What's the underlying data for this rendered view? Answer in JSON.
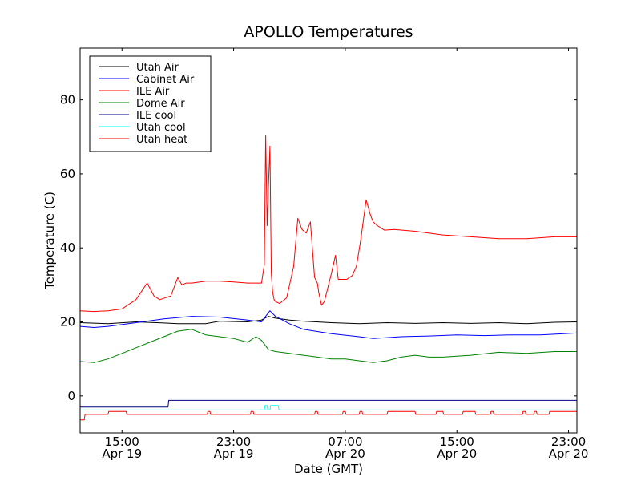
{
  "chart_data": {
    "type": "line",
    "title": "APOLLO Temperatures",
    "xlabel": "Date (GMT)",
    "ylabel": "Temperature (C)",
    "xlim": [
      12.0,
      47.6
    ],
    "ylim": [
      -10,
      94
    ],
    "grid": false,
    "legend_position": "top-left",
    "x_unit": "hours since 00:00 GMT Apr 19",
    "x_ticks": [
      {
        "value": 15,
        "time": "15:00",
        "date": "Apr 19"
      },
      {
        "value": 23,
        "time": "23:00",
        "date": "Apr 19"
      },
      {
        "value": 31,
        "time": "07:00",
        "date": "Apr 20"
      },
      {
        "value": 39,
        "time": "15:00",
        "date": "Apr 20"
      },
      {
        "value": 47,
        "time": "23:00",
        "date": "Apr 20"
      }
    ],
    "y_ticks": [
      {
        "value": 0,
        "label": "0"
      },
      {
        "value": 20,
        "label": "20"
      },
      {
        "value": 40,
        "label": "40"
      },
      {
        "value": 60,
        "label": "60"
      },
      {
        "value": 80,
        "label": "80"
      }
    ],
    "series": [
      {
        "name": "Utah Air",
        "color": "#000000",
        "x": [
          12.0,
          14.0,
          16.0,
          18.0,
          19.0,
          21.0,
          22.0,
          24.0,
          25.0,
          25.5,
          26.0,
          27.0,
          28.0,
          30.0,
          32.0,
          34.0,
          36.0,
          38.0,
          40.0,
          42.0,
          44.0,
          46.0,
          47.6
        ],
        "y": [
          19.8,
          19.5,
          20.0,
          19.7,
          19.5,
          19.5,
          20.2,
          20.0,
          20.5,
          21.5,
          21.0,
          20.5,
          20.2,
          19.8,
          19.5,
          19.8,
          19.6,
          19.8,
          19.6,
          19.8,
          19.5,
          19.9,
          20.0
        ]
      },
      {
        "name": "Cabinet Air",
        "color": "#0000ff",
        "x": [
          12.0,
          13.0,
          14.0,
          16.0,
          18.0,
          20.0,
          22.0,
          24.0,
          25.0,
          25.3,
          25.6,
          26.0,
          27.0,
          28.0,
          30.0,
          32.0,
          33.0,
          35.0,
          37.0,
          39.0,
          41.0,
          43.0,
          45.0,
          47.6
        ],
        "y": [
          18.8,
          18.5,
          18.8,
          19.8,
          20.8,
          21.5,
          21.3,
          20.5,
          20.0,
          21.5,
          23.0,
          21.5,
          19.5,
          18.0,
          16.8,
          16.0,
          15.5,
          16.0,
          16.2,
          16.5,
          16.3,
          16.5,
          16.5,
          17.0
        ]
      },
      {
        "name": "ILE Air",
        "color": "#ff0000",
        "x": [
          12.0,
          13.0,
          14.0,
          15.0,
          16.0,
          16.8,
          17.3,
          17.7,
          18.5,
          19.0,
          19.3,
          19.6,
          20.0,
          21.0,
          22.0,
          23.0,
          24.0,
          25.0,
          25.2,
          25.3,
          25.4,
          25.5,
          25.6,
          25.7,
          25.8,
          25.9,
          26.0,
          26.3,
          26.8,
          27.3,
          27.6,
          27.9,
          28.2,
          28.5,
          28.8,
          29.0,
          29.1,
          29.3,
          29.5,
          30.0,
          30.3,
          30.5,
          30.7,
          30.9,
          31.1,
          31.3,
          31.5,
          31.8,
          32.1,
          32.5,
          32.8,
          33.0,
          33.3,
          33.8,
          34.5,
          36.0,
          38.0,
          40.0,
          42.0,
          44.0,
          46.0,
          47.6
        ],
        "y": [
          23.0,
          22.8,
          23.0,
          23.5,
          26.0,
          30.5,
          27.0,
          26.0,
          27.0,
          32.0,
          30.0,
          30.5,
          30.5,
          31.0,
          31.0,
          30.8,
          30.5,
          30.5,
          35.5,
          70.5,
          46.0,
          57.0,
          67.5,
          33.0,
          28.0,
          26.0,
          25.5,
          25.0,
          26.5,
          35.0,
          48.0,
          45.0,
          44.0,
          47.0,
          32.0,
          30.5,
          28.0,
          24.5,
          25.5,
          33.0,
          38.0,
          31.5,
          31.5,
          31.5,
          31.5,
          32.0,
          32.5,
          35.0,
          42.0,
          53.0,
          49.0,
          47.0,
          46.0,
          44.8,
          45.0,
          44.5,
          43.5,
          43.0,
          42.5,
          42.5,
          43.0,
          43.0
        ]
      },
      {
        "name": "Dome Air",
        "color": "#008000",
        "x": [
          12.0,
          13.0,
          14.0,
          15.0,
          16.0,
          17.0,
          18.0,
          19.0,
          20.0,
          21.0,
          22.0,
          23.0,
          24.0,
          24.6,
          25.0,
          25.5,
          26.0,
          27.0,
          28.0,
          29.0,
          30.0,
          31.0,
          32.0,
          33.0,
          34.0,
          35.0,
          36.0,
          37.0,
          38.0,
          40.0,
          42.0,
          44.0,
          46.0,
          47.6
        ],
        "y": [
          9.3,
          9.0,
          10.0,
          11.5,
          13.0,
          14.5,
          16.0,
          17.5,
          18.0,
          16.5,
          16.0,
          15.5,
          14.5,
          16.0,
          15.0,
          12.5,
          12.0,
          11.5,
          11.0,
          10.5,
          10.0,
          10.0,
          9.5,
          9.0,
          9.5,
          10.5,
          11.0,
          10.5,
          10.5,
          11.0,
          11.8,
          11.5,
          12.0,
          12.0
        ]
      },
      {
        "name": "ILE cool",
        "color": "#000080",
        "x": [
          12.0,
          18.3,
          18.35,
          47.6
        ],
        "y": [
          -3.0,
          -3.0,
          -1.2,
          -1.2
        ]
      },
      {
        "name": "Utah cool",
        "color": "#00ffff",
        "x": [
          12.0,
          25.2,
          25.25,
          25.4,
          25.45,
          25.6,
          25.65,
          26.2,
          26.25,
          47.6
        ],
        "y": [
          -3.8,
          -3.8,
          -2.6,
          -2.6,
          -3.8,
          -3.8,
          -2.6,
          -2.6,
          -3.8,
          -3.8
        ]
      },
      {
        "name": "Utah heat",
        "color": "#ff0000",
        "x": [
          12.0,
          12.3,
          12.35,
          14.0,
          14.05,
          15.3,
          15.35,
          21.1,
          21.15,
          21.3,
          21.35,
          24.2,
          24.25,
          24.4,
          24.45,
          28.8,
          28.85,
          29.0,
          29.05,
          30.8,
          30.85,
          31.0,
          31.05,
          32.0,
          32.05,
          32.2,
          32.25,
          34.0,
          34.05,
          36.0,
          36.05,
          37.5,
          37.55,
          38.0,
          38.05,
          39.4,
          39.45,
          40.3,
          40.35,
          41.4,
          41.45,
          41.6,
          41.65,
          43.7,
          43.75,
          43.9,
          43.95,
          44.5,
          44.55,
          44.7,
          44.75,
          45.6,
          45.65,
          47.6
        ],
        "y": [
          -6.5,
          -6.5,
          -5.0,
          -5.0,
          -4.2,
          -4.2,
          -5.0,
          -5.0,
          -4.2,
          -4.2,
          -5.0,
          -5.0,
          -4.2,
          -4.2,
          -5.0,
          -5.0,
          -4.2,
          -4.2,
          -5.0,
          -5.0,
          -4.2,
          -4.2,
          -5.0,
          -5.0,
          -4.2,
          -4.2,
          -5.0,
          -5.0,
          -4.2,
          -4.2,
          -5.0,
          -5.0,
          -4.2,
          -4.2,
          -5.0,
          -5.0,
          -4.2,
          -4.2,
          -5.0,
          -5.0,
          -4.2,
          -4.2,
          -5.0,
          -5.0,
          -4.2,
          -4.2,
          -5.0,
          -5.0,
          -4.2,
          -4.2,
          -5.0,
          -5.0,
          -4.2,
          -4.2
        ]
      }
    ]
  }
}
